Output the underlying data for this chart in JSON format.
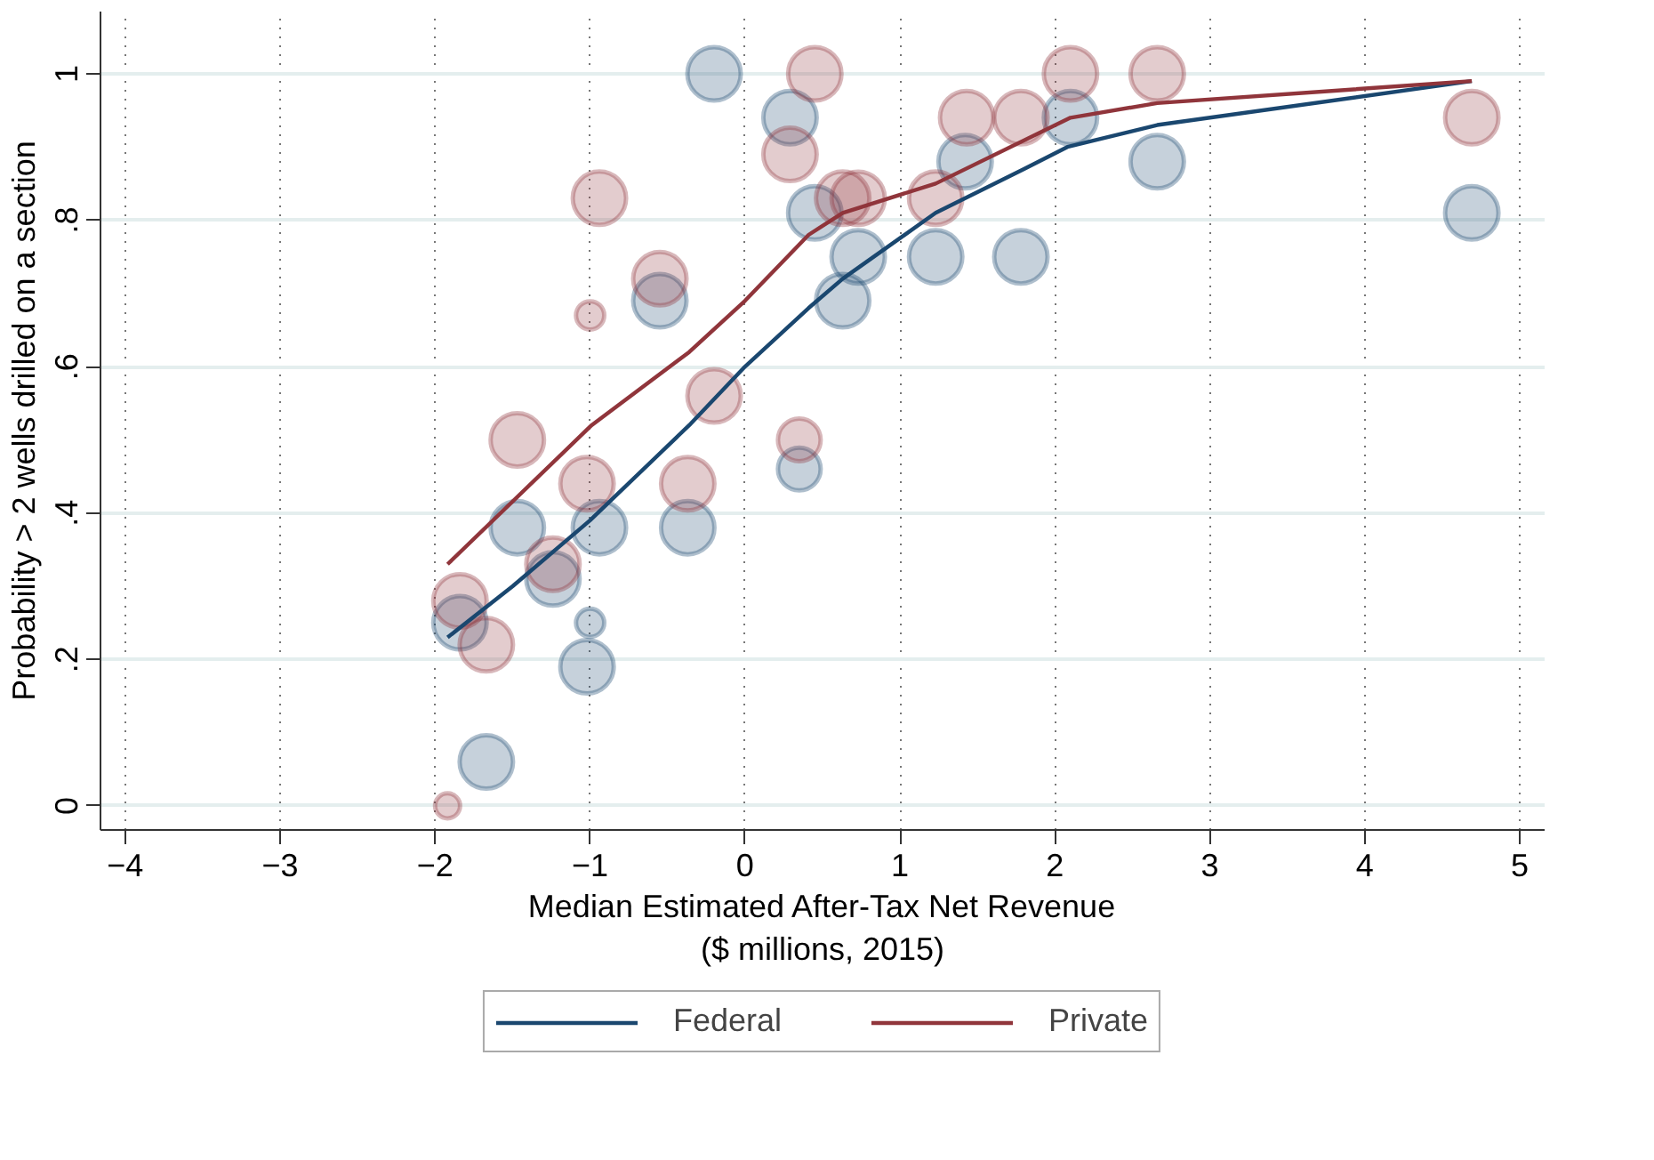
{
  "chart_data": {
    "type": "bubble",
    "xlabel": "Median Estimated After-Tax Net Revenue\n($ millions, 2015)",
    "ylabel": "Probability > 2 wells drilled on a section",
    "xlim": [
      -4.16,
      5.16
    ],
    "ylim": [
      -0.033,
      1.085
    ],
    "xticks": [
      -4,
      -3,
      -2,
      -1,
      0,
      1,
      2,
      3,
      4,
      5
    ],
    "yticks": [
      {
        "value": 0,
        "label": "0"
      },
      {
        "value": 0.2,
        "label": ".2"
      },
      {
        "value": 0.4,
        "label": ".4"
      },
      {
        "value": 0.6,
        "label": ".6"
      },
      {
        "value": 0.8,
        "label": ".8"
      },
      {
        "value": 1,
        "label": "1"
      }
    ],
    "grid": true,
    "legend": "bottom",
    "series": [
      {
        "color": "#1a476f",
        "x": [
          -0.2,
          0.29,
          0.45,
          0.63,
          0.73,
          1.23,
          1.42,
          1.78,
          2.1,
          2.66,
          4.69,
          -0.55,
          -1.47,
          -0.94,
          -0.37,
          -1.24,
          -1.84,
          -1.0,
          -1.02,
          -1.67,
          0.35
        ],
        "values": [
          1.0,
          0.94,
          0.81,
          0.69,
          0.75,
          0.75,
          0.88,
          0.75,
          0.94,
          0.88,
          0.81,
          0.69,
          0.38,
          0.38,
          0.38,
          0.31,
          0.25,
          0.25,
          0.19,
          0.06,
          0.46
        ],
        "sizes": [
          1,
          1,
          1,
          1,
          1,
          1,
          1,
          1,
          1,
          1,
          1,
          1,
          1,
          1,
          1,
          1,
          1,
          0.28,
          1,
          1,
          0.64
        ]
      },
      {
        "color": "#90353b",
        "x": [
          0.45,
          0.29,
          -0.94,
          -0.55,
          -1.0,
          -0.2,
          0.63,
          0.73,
          1.43,
          1.78,
          2.1,
          2.66,
          4.69,
          1.23,
          -1.47,
          -1.02,
          -0.37,
          0.35,
          -1.24,
          -1.84,
          -1.67,
          -1.92
        ],
        "values": [
          1.0,
          0.89,
          0.83,
          0.72,
          0.67,
          0.56,
          0.83,
          0.83,
          0.94,
          0.94,
          1.0,
          1.0,
          0.94,
          0.83,
          0.5,
          0.44,
          0.44,
          0.5,
          0.33,
          0.28,
          0.22,
          0.0
        ],
        "sizes": [
          1,
          1,
          1,
          1,
          0.28,
          1,
          1,
          1,
          1,
          1,
          1,
          1,
          1,
          1,
          1,
          1,
          1,
          0.64,
          1,
          1,
          1,
          0.22
        ]
      },
      {
        "type": "line",
        "name": "Federal",
        "color": "#1a476f",
        "x": [
          -1.92,
          -1.5,
          -1.0,
          -0.36,
          0,
          0.41,
          0.63,
          1.23,
          1.8,
          2.08,
          2.66,
          4.69
        ],
        "values": [
          0.23,
          0.3,
          0.39,
          0.52,
          0.6,
          0.68,
          0.72,
          0.81,
          0.87,
          0.9,
          0.93,
          0.99
        ]
      },
      {
        "type": "line",
        "name": "Private",
        "color": "#90353b",
        "x": [
          -1.92,
          -0.99,
          -0.36,
          0,
          0.41,
          0.63,
          1.23,
          2.1,
          2.66,
          4.69
        ],
        "values": [
          0.33,
          0.52,
          0.62,
          0.69,
          0.78,
          0.81,
          0.85,
          0.94,
          0.96,
          0.99
        ]
      }
    ]
  }
}
